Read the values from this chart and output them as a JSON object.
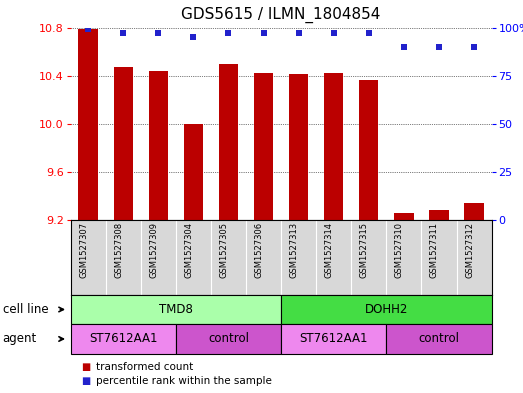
{
  "title": "GDS5615 / ILMN_1804854",
  "samples": [
    "GSM1527307",
    "GSM1527308",
    "GSM1527309",
    "GSM1527304",
    "GSM1527305",
    "GSM1527306",
    "GSM1527313",
    "GSM1527314",
    "GSM1527315",
    "GSM1527310",
    "GSM1527311",
    "GSM1527312"
  ],
  "bar_values": [
    10.79,
    10.47,
    10.44,
    10.0,
    10.5,
    10.42,
    10.41,
    10.42,
    10.36,
    9.26,
    9.28,
    9.34
  ],
  "percentile_values": [
    99,
    97,
    97,
    95,
    97,
    97,
    97,
    97,
    97,
    90,
    90,
    90
  ],
  "ylim_left": [
    9.2,
    10.8
  ],
  "ylim_right": [
    0,
    100
  ],
  "yticks_left": [
    9.2,
    9.6,
    10.0,
    10.4,
    10.8
  ],
  "yticks_right": [
    0,
    25,
    50,
    75,
    100
  ],
  "bar_color": "#bb0000",
  "dot_color": "#2222cc",
  "bar_width": 0.55,
  "cell_line_groups": [
    {
      "label": "TMD8",
      "start": 0,
      "end": 5,
      "color": "#aaffaa"
    },
    {
      "label": "DOHH2",
      "start": 6,
      "end": 11,
      "color": "#44dd44"
    }
  ],
  "agent_groups": [
    {
      "label": "ST7612AA1",
      "start": 0,
      "end": 2,
      "color": "#ee88ee"
    },
    {
      "label": "control",
      "start": 3,
      "end": 5,
      "color": "#cc55cc"
    },
    {
      "label": "ST7612AA1",
      "start": 6,
      "end": 8,
      "color": "#ee88ee"
    },
    {
      "label": "control",
      "start": 9,
      "end": 11,
      "color": "#cc55cc"
    }
  ],
  "legend_items": [
    {
      "label": "transformed count",
      "color": "#bb0000"
    },
    {
      "label": "percentile rank within the sample",
      "color": "#2222cc"
    }
  ],
  "cell_line_label": "cell line",
  "agent_label": "agent",
  "background_color": "#ffffff",
  "tick_label_fontsize": 8,
  "sample_label_fontsize": 6,
  "row_label_fontsize": 8.5,
  "group_label_fontsize": 8.5,
  "title_fontsize": 11
}
